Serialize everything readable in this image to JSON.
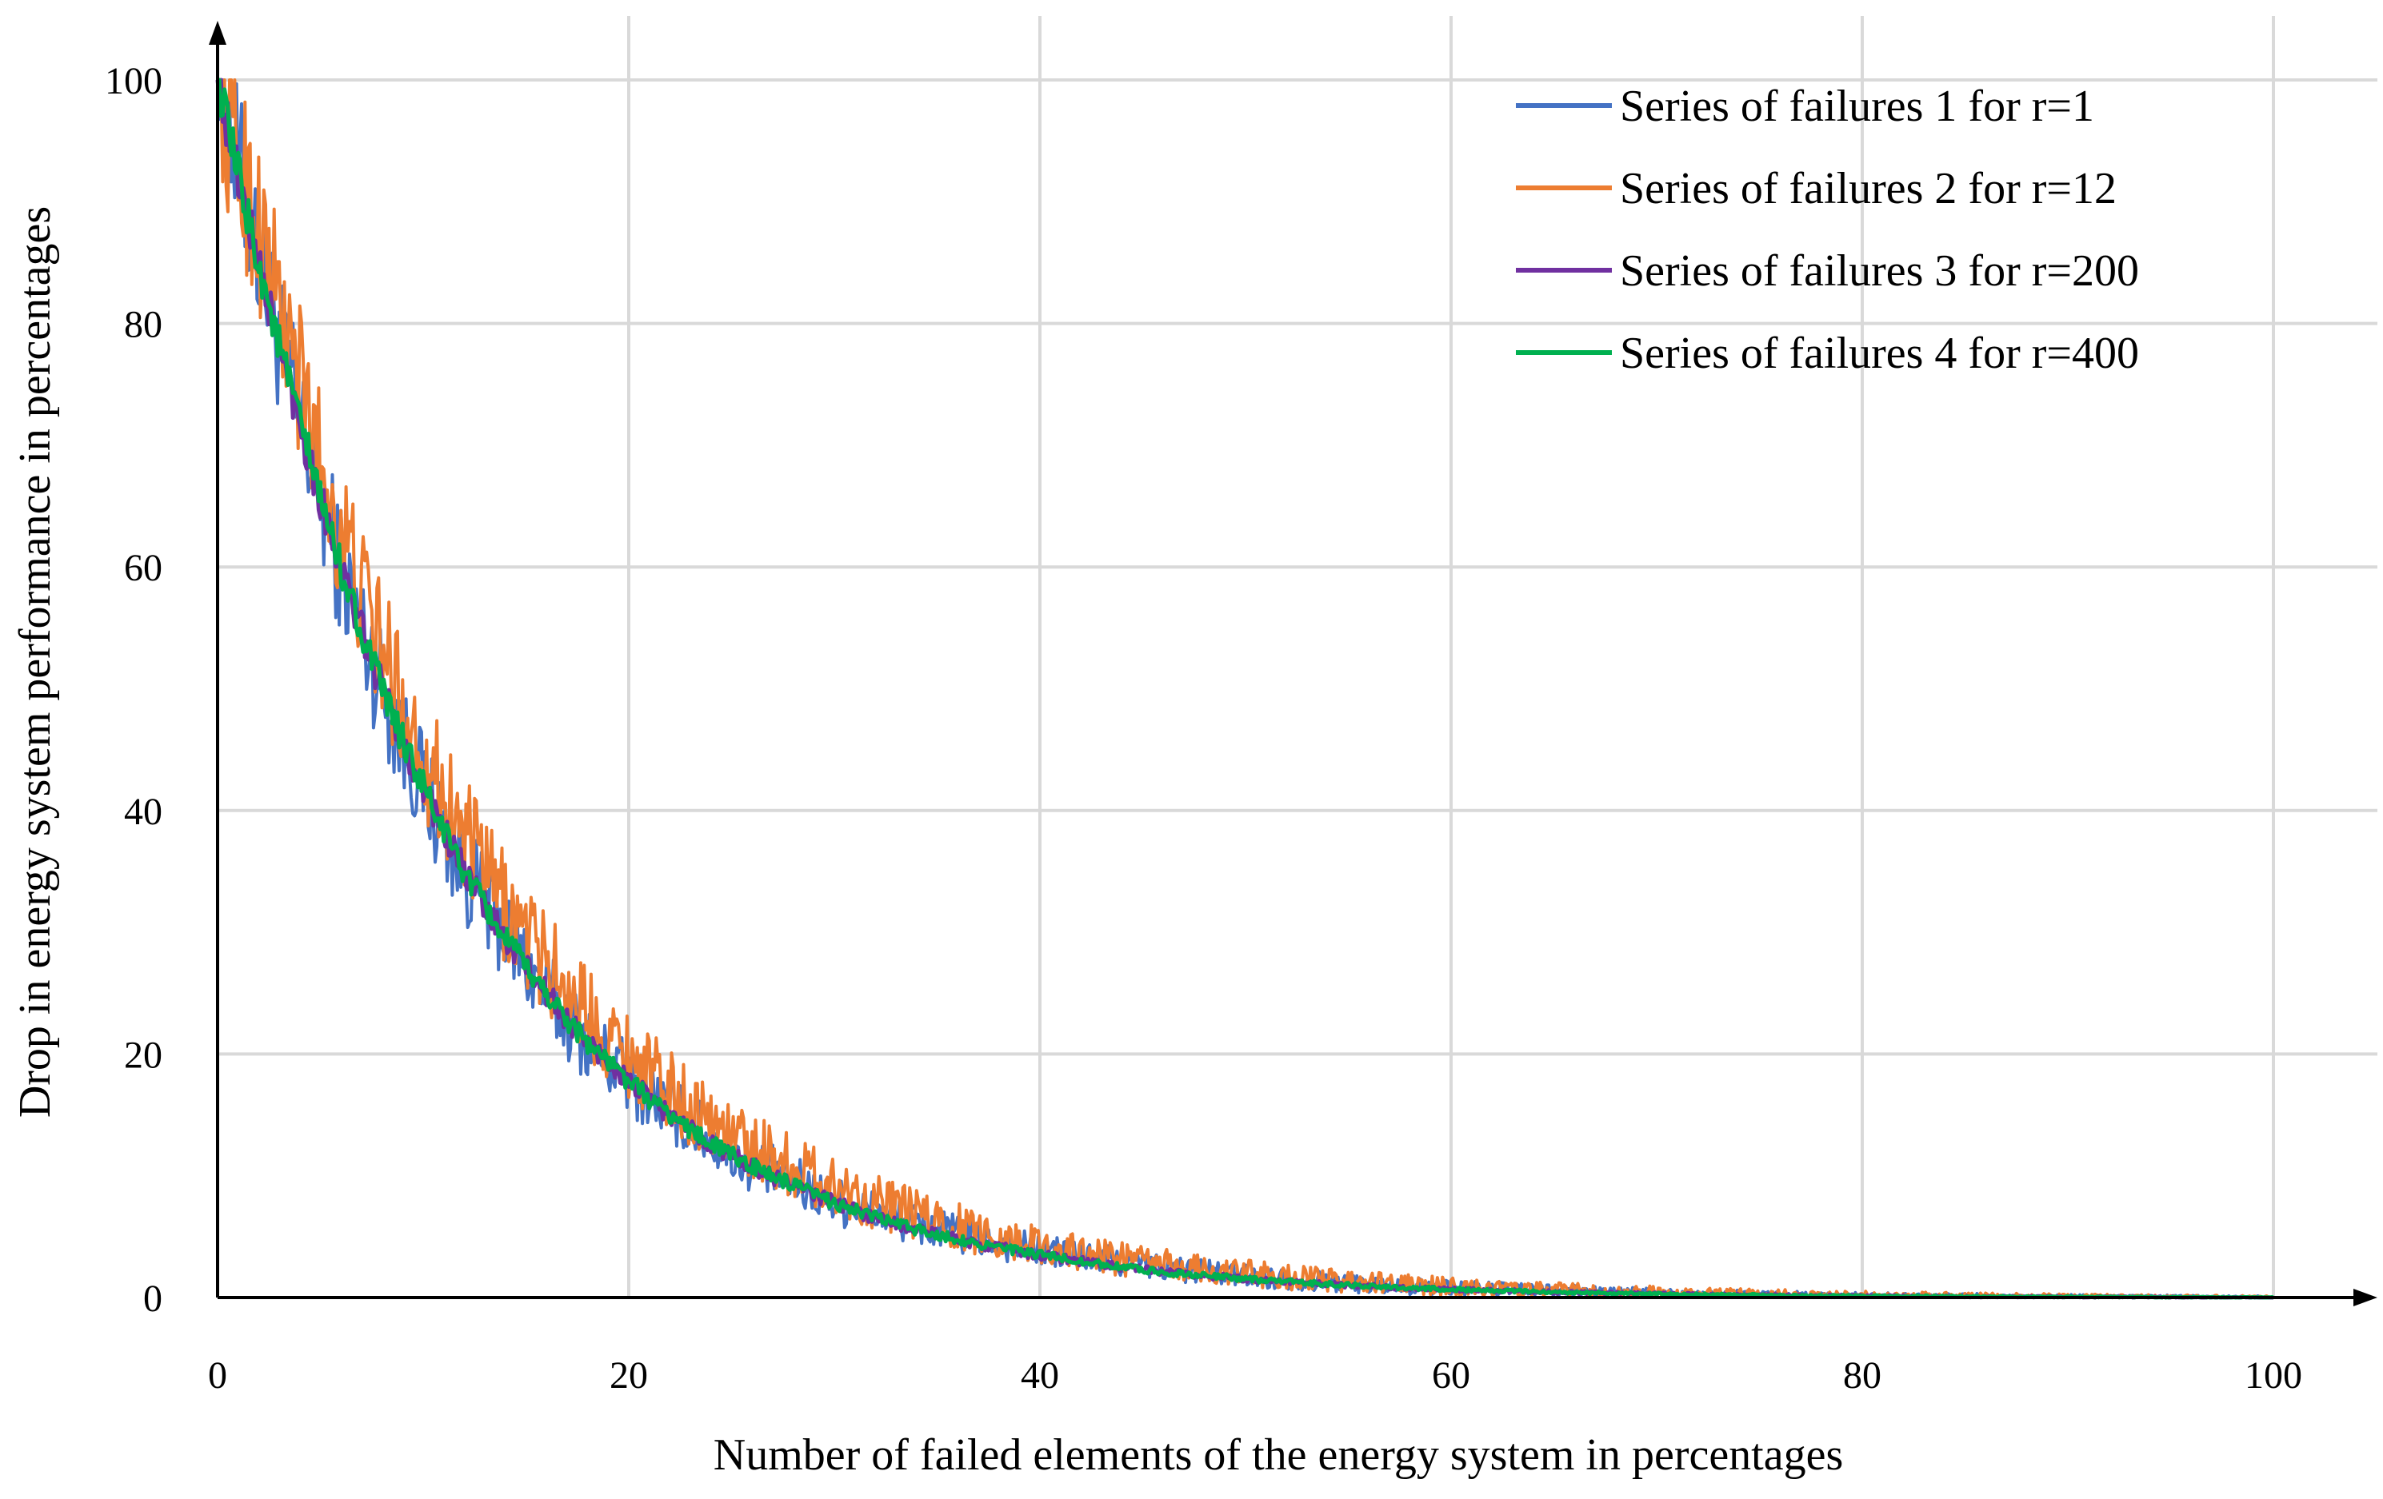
{
  "chart_data": {
    "type": "line",
    "title": "",
    "xlabel": "Number of failed elements of the energy system in percentages",
    "ylabel": "Drop in energy system performance in percentages",
    "xlim": [
      0,
      100
    ],
    "ylim": [
      0,
      100
    ],
    "xticks": [
      0,
      20,
      40,
      60,
      80,
      100
    ],
    "yticks": [
      0,
      20,
      40,
      60,
      80,
      100
    ],
    "xtick_labels": [
      "0",
      "20",
      "40",
      "60",
      "80",
      "100"
    ],
    "ytick_labels": [
      "0",
      "20",
      "40",
      "60",
      "80",
      "100"
    ],
    "grid": true,
    "legend_position": "top-right",
    "x": [
      0,
      2,
      4,
      6,
      8,
      10,
      12,
      14,
      16,
      18,
      20,
      22,
      24,
      26,
      28,
      30,
      32,
      34,
      36,
      38,
      40,
      42,
      44,
      46,
      48,
      50,
      52,
      54,
      56,
      58,
      60,
      62,
      64,
      66,
      68,
      70,
      72,
      74,
      76,
      78,
      80,
      82,
      84,
      86,
      88,
      90,
      92,
      94,
      96,
      98,
      100
    ],
    "series": [
      {
        "name": "Series of failures 1 for r=1",
        "color": "#4472C4",
        "noise": 3.2,
        "values": [
          100,
          86,
          72,
          60,
          50,
          42,
          35,
          30,
          25,
          21,
          18,
          15.5,
          13,
          11,
          9.5,
          8,
          7,
          6,
          5.2,
          4.5,
          3.9,
          3.4,
          2.9,
          2.5,
          2.1,
          1.8,
          1.5,
          1.3,
          1.1,
          0.9,
          0.8,
          0.7,
          0.6,
          0.5,
          0.4,
          0.35,
          0.3,
          0.25,
          0.2,
          0.18,
          0.15,
          0.13,
          0.11,
          0.1,
          0.08,
          0.07,
          0.06,
          0.05,
          0.04,
          0.03,
          0.02
        ]
      },
      {
        "name": "Series of failures 2 for r=12",
        "color": "#ED7D31",
        "noise": 3.6,
        "values": [
          100,
          88,
          75,
          63,
          53,
          45,
          38,
          32,
          27.5,
          23.5,
          20,
          17,
          14.5,
          12.5,
          10.8,
          9.2,
          7.9,
          6.8,
          5.8,
          5,
          4.3,
          3.7,
          3.2,
          2.7,
          2.3,
          2,
          1.7,
          1.45,
          1.25,
          1.05,
          0.9,
          0.78,
          0.66,
          0.56,
          0.48,
          0.41,
          0.35,
          0.3,
          0.25,
          0.21,
          0.18,
          0.15,
          0.13,
          0.11,
          0.09,
          0.08,
          0.06,
          0.05,
          0.04,
          0.03,
          0.02
        ]
      },
      {
        "name": "Series of failures 3 for r=200",
        "color": "#7030A0",
        "noise": 1.0,
        "values": [
          100,
          85,
          72,
          60,
          50,
          42,
          35,
          29.5,
          25,
          21,
          17.8,
          15,
          12.7,
          10.8,
          9.2,
          7.8,
          6.6,
          5.6,
          4.8,
          4.1,
          3.5,
          3,
          2.5,
          2.1,
          1.8,
          1.55,
          1.3,
          1.1,
          0.95,
          0.8,
          0.68,
          0.58,
          0.49,
          0.42,
          0.36,
          0.3,
          0.26,
          0.22,
          0.19,
          0.16,
          0.14,
          0.12,
          0.1,
          0.08,
          0.07,
          0.06,
          0.05,
          0.04,
          0.03,
          0.02,
          0.01
        ]
      },
      {
        "name": "Series of failures 4 for r=400",
        "color": "#00B050",
        "noise": 0.9,
        "values": [
          100,
          85,
          72,
          60,
          50,
          42,
          35,
          29.5,
          25,
          21,
          17.8,
          15,
          12.7,
          10.8,
          9.2,
          7.8,
          6.6,
          5.6,
          4.8,
          4.1,
          3.5,
          3,
          2.5,
          2.1,
          1.8,
          1.55,
          1.3,
          1.1,
          0.95,
          0.8,
          0.68,
          0.58,
          0.49,
          0.42,
          0.36,
          0.3,
          0.26,
          0.22,
          0.19,
          0.16,
          0.14,
          0.12,
          0.1,
          0.08,
          0.07,
          0.06,
          0.05,
          0.04,
          0.03,
          0.02,
          0.01
        ]
      }
    ]
  }
}
